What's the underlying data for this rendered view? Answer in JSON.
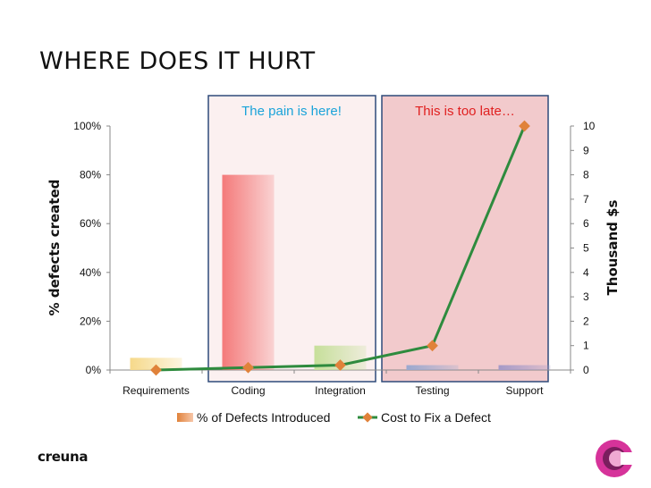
{
  "slide": {
    "title": "WHERE DOES IT HURT",
    "brand": "creuna"
  },
  "colors": {
    "bar_requirements": "#f6d98a",
    "bar_coding": "#f47a7a",
    "bar_integration": "#c6df9a",
    "bar_testing": "#9aa8cf",
    "bar_support": "#a59ac8",
    "line": "#2e8b3e",
    "marker": "#e0823a",
    "box_border": "#2e4a7a",
    "zone_coding_fill": "#fbf0f0",
    "zone_late_fill": "#f2cacc",
    "callout_pain": "#1aa3d9",
    "callout_late": "#e02020",
    "brand_mark": "#d6339a"
  },
  "annotations": {
    "pain": "The pain is here!",
    "late": "This is too late…"
  },
  "chart_data": {
    "type": "bar",
    "categories": [
      "Requirements",
      "Coding",
      "Integration",
      "Testing",
      "Support"
    ],
    "series": [
      {
        "name": "% of Defects Introduced",
        "type": "bar",
        "axis": "left",
        "values": [
          5,
          80,
          10,
          2,
          2
        ]
      },
      {
        "name": "Cost to Fix a Defect",
        "type": "line",
        "axis": "right",
        "values": [
          0,
          0.1,
          0.2,
          1,
          10
        ]
      }
    ],
    "ylabel": "% defects created",
    "y2label": "Thousand $s",
    "ylim": [
      0,
      100
    ],
    "y2lim": [
      0,
      10
    ],
    "yticks": [
      "0%",
      "20%",
      "40%",
      "60%",
      "80%",
      "100%"
    ],
    "y2ticks": [
      "0",
      "1",
      "2",
      "3",
      "4",
      "5",
      "6",
      "7",
      "8",
      "9",
      "10"
    ],
    "legend_position": "bottom",
    "grid": false
  }
}
